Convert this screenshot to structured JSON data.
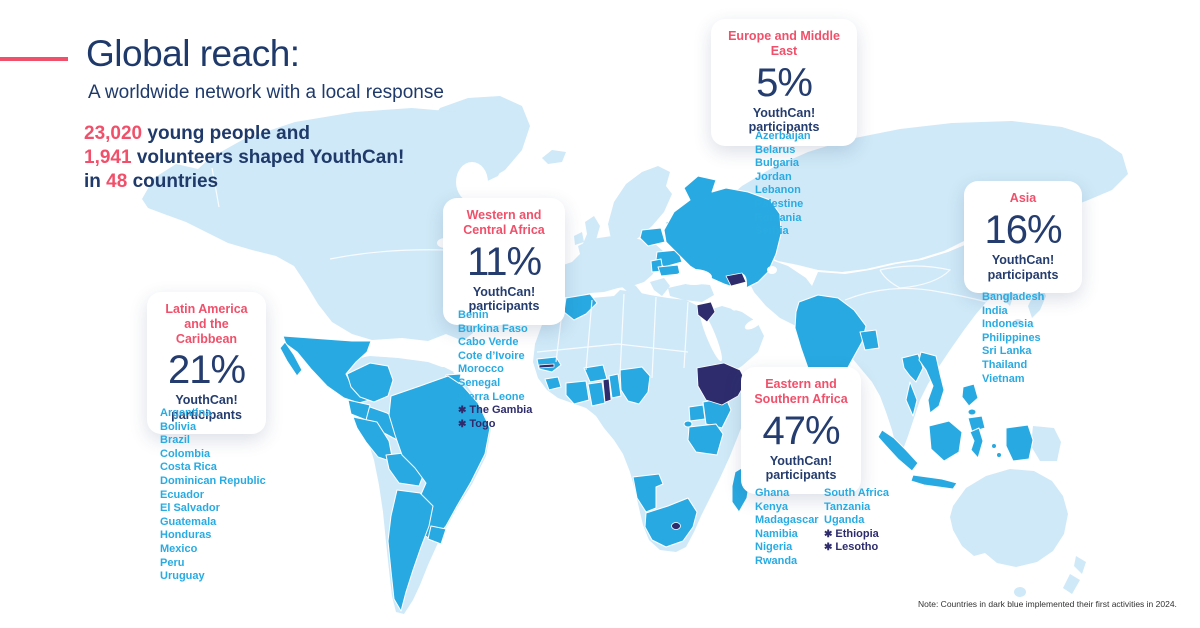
{
  "page": {
    "title": "Global reach:",
    "subtitle": "A worldwide network with a local response",
    "note": "Note: Countries in dark blue implemented their first activities in 2024."
  },
  "stats": {
    "line1_value": "23,020",
    "line1_text": " young people and",
    "line2_value": "1,941",
    "line2_text": " volunteers shaped YouthCan!",
    "line3_prefix": "in ",
    "line3_value": "48",
    "line3_suffix": " countries"
  },
  "icons": {
    "first_2024_star": "✱"
  },
  "regions": [
    {
      "id": "europe-middle-east",
      "name": "Europe and Middle East",
      "percent": "5%",
      "participants_label": "YouthCan! participants",
      "columns": [
        [
          "Azerbaijan",
          "Belarus",
          "Bulgaria",
          "Jordan",
          "Lebanon",
          "Palestine",
          "Romania",
          "Serbia"
        ]
      ]
    },
    {
      "id": "western-central-africa",
      "name": "Western and Central Africa",
      "percent": "11%",
      "participants_label": "YouthCan! participants",
      "columns": [
        [
          "Benin",
          "Burkina Faso",
          "Cabo Verde",
          "Cote d’Ivoire",
          "Morocco",
          "Senegal",
          "Sierra Leone",
          {
            "label": "The Gambia",
            "first_2024": true
          },
          {
            "label": "Togo",
            "first_2024": true
          }
        ]
      ]
    },
    {
      "id": "latin-america-caribbean",
      "name": "Latin America and the Caribbean",
      "percent": "21%",
      "participants_label": "YouthCan! participants",
      "columns": [
        [
          "Argentina",
          "Bolivia",
          "Brazil",
          "Colombia",
          "Costa Rica",
          "Dominican Republic",
          "Ecuador",
          "El Salvador",
          "Guatemala",
          "Honduras",
          "Mexico",
          "Peru",
          "Uruguay"
        ]
      ]
    },
    {
      "id": "eastern-southern-africa",
      "name": "Eastern and Southern Africa",
      "percent": "47%",
      "participants_label": "YouthCan! participants",
      "columns": [
        [
          "Ghana",
          "Kenya",
          "Madagascar",
          "Namibia",
          "Nigeria",
          "Rwanda"
        ],
        [
          "South Africa",
          "Tanzania",
          "Uganda",
          {
            "label": "Ethiopia",
            "first_2024": true
          },
          {
            "label": "Lesotho",
            "first_2024": true
          }
        ]
      ]
    },
    {
      "id": "asia",
      "name": "Asia",
      "percent": "16%",
      "participants_label": "YouthCan! participants",
      "columns": [
        [
          "Bangladesh",
          "India",
          "Indonesia",
          "Philippines",
          "Sri Lanka",
          "Thailand",
          "Vietnam"
        ]
      ]
    }
  ],
  "colors": {
    "accent_pink": "#f0506a",
    "navy_text": "#1f3a6a",
    "list_cyan": "#29abe2",
    "map_light": "#cfe9f8",
    "map_participating": "#29a9e1",
    "map_first_2024": "#2e2c6d"
  }
}
